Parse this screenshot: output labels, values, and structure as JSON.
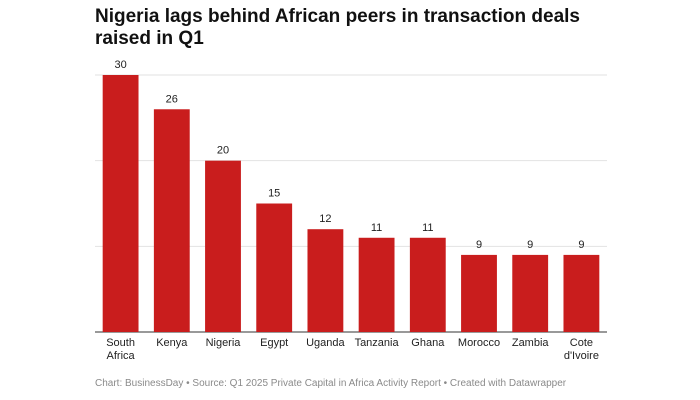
{
  "chart_data": {
    "type": "bar",
    "title": "Nigeria lags behind African peers in transaction deals raised in Q1",
    "categories": [
      "South Africa",
      "Kenya",
      "Nigeria",
      "Egypt",
      "Uganda",
      "Tanzania",
      "Ghana",
      "Morocco",
      "Zambia",
      "Cote d'Ivoire"
    ],
    "values": [
      30,
      26,
      20,
      15,
      12,
      11,
      11,
      9,
      9,
      9
    ],
    "color": "#c91d1d",
    "ylim": [
      0,
      30
    ],
    "yticks": [
      0,
      10,
      20,
      30
    ],
    "grid": true,
    "footer": "Chart: BusinessDay • Source: Q1 2025 Private Capital in Africa Activity Report • Created with Datawrapper"
  }
}
